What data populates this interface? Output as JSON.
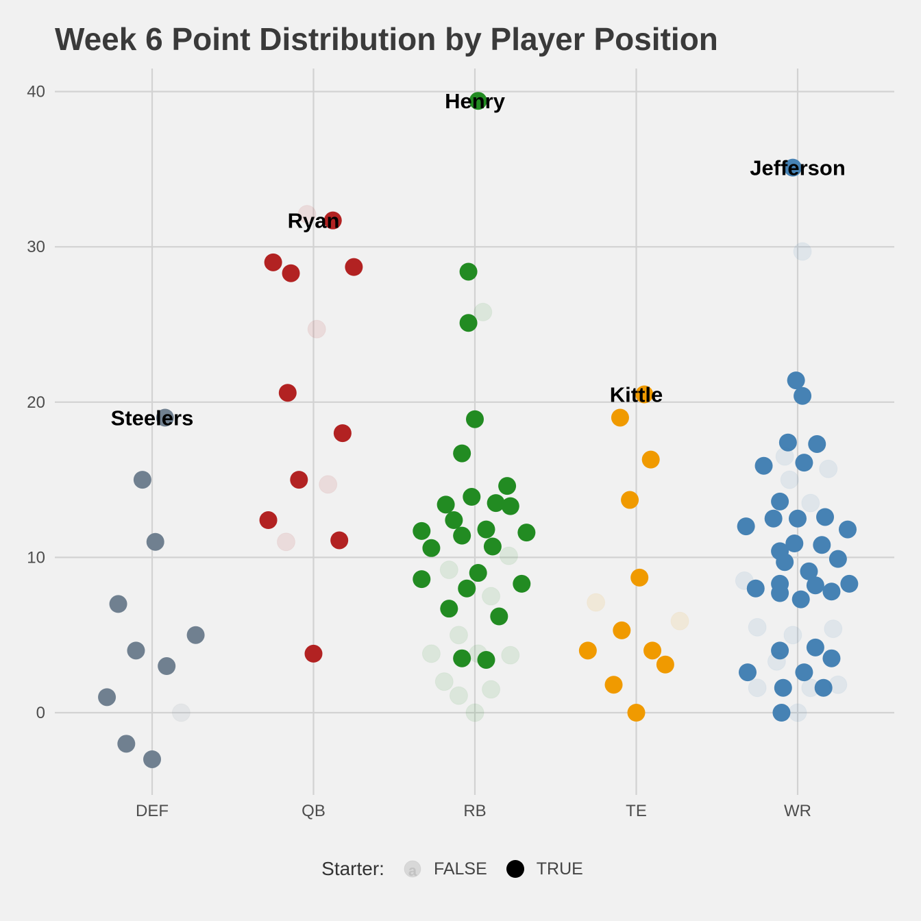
{
  "chart_data": {
    "type": "scatter",
    "title": "Week 6 Point Distribution by Player Position",
    "xlabel": "",
    "ylabel": "",
    "categories": [
      "DEF",
      "QB",
      "RB",
      "TE",
      "WR"
    ],
    "ylim": [
      -5,
      41
    ],
    "y_ticks": [
      0,
      10,
      20,
      30,
      40
    ],
    "grid": true,
    "legend": {
      "title": "Starter:",
      "position": "bottom",
      "entries": [
        {
          "label": "FALSE",
          "starter": false
        },
        {
          "label": "TRUE",
          "starter": true
        }
      ]
    },
    "colors": {
      "DEF": "#708090",
      "QB": "#b22222",
      "RB": "#228b22",
      "TE": "#f09a00",
      "WR": "#4682b4",
      "background": "#f1f1f1",
      "grid": "#d2d2d2"
    },
    "series": [
      {
        "category": "DEF",
        "points": [
          {
            "x": 0.08,
            "y": 19,
            "starter": true,
            "label": "Steelers"
          },
          {
            "x": -0.06,
            "y": 15,
            "starter": true
          },
          {
            "x": 0.02,
            "y": 11,
            "starter": true
          },
          {
            "x": -0.21,
            "y": 7,
            "starter": true
          },
          {
            "x": 0.27,
            "y": 5,
            "starter": true
          },
          {
            "x": -0.1,
            "y": 4,
            "starter": true
          },
          {
            "x": 0.09,
            "y": 3,
            "starter": true
          },
          {
            "x": -0.28,
            "y": 1,
            "starter": true
          },
          {
            "x": -0.16,
            "y": -2,
            "starter": true
          },
          {
            "x": 0.0,
            "y": -3,
            "starter": true
          },
          {
            "x": 0.18,
            "y": 0,
            "starter": false
          }
        ]
      },
      {
        "category": "QB",
        "points": [
          {
            "x": 0.12,
            "y": 31.7,
            "starter": true,
            "label": "Ryan"
          },
          {
            "x": -0.04,
            "y": 32.1,
            "starter": false
          },
          {
            "x": -0.25,
            "y": 29.0,
            "starter": true
          },
          {
            "x": -0.14,
            "y": 28.3,
            "starter": true
          },
          {
            "x": 0.25,
            "y": 28.7,
            "starter": true
          },
          {
            "x": 0.02,
            "y": 24.7,
            "starter": false
          },
          {
            "x": -0.16,
            "y": 20.6,
            "starter": true
          },
          {
            "x": 0.18,
            "y": 18.0,
            "starter": true
          },
          {
            "x": -0.09,
            "y": 15.0,
            "starter": true
          },
          {
            "x": 0.09,
            "y": 14.7,
            "starter": false
          },
          {
            "x": -0.28,
            "y": 12.4,
            "starter": true
          },
          {
            "x": -0.17,
            "y": 11.0,
            "starter": false
          },
          {
            "x": 0.16,
            "y": 11.1,
            "starter": true
          },
          {
            "x": 0.0,
            "y": 3.8,
            "starter": true
          }
        ]
      },
      {
        "category": "RB",
        "points": [
          {
            "x": 0.02,
            "y": 39.4,
            "starter": true,
            "label": "Henry"
          },
          {
            "x": -0.04,
            "y": 28.4,
            "starter": true
          },
          {
            "x": 0.05,
            "y": 25.8,
            "starter": false
          },
          {
            "x": -0.04,
            "y": 25.1,
            "starter": true
          },
          {
            "x": 0.0,
            "y": 18.9,
            "starter": true
          },
          {
            "x": -0.08,
            "y": 16.7,
            "starter": true
          },
          {
            "x": 0.2,
            "y": 14.6,
            "starter": true
          },
          {
            "x": -0.02,
            "y": 13.9,
            "starter": true
          },
          {
            "x": 0.13,
            "y": 13.5,
            "starter": true
          },
          {
            "x": -0.18,
            "y": 13.4,
            "starter": true
          },
          {
            "x": 0.22,
            "y": 13.3,
            "starter": true
          },
          {
            "x": -0.13,
            "y": 12.4,
            "starter": true
          },
          {
            "x": -0.33,
            "y": 11.7,
            "starter": true
          },
          {
            "x": 0.07,
            "y": 11.8,
            "starter": true
          },
          {
            "x": 0.32,
            "y": 11.6,
            "starter": true
          },
          {
            "x": -0.08,
            "y": 11.4,
            "starter": true
          },
          {
            "x": -0.27,
            "y": 10.6,
            "starter": true
          },
          {
            "x": 0.11,
            "y": 10.7,
            "starter": true
          },
          {
            "x": 0.21,
            "y": 10.1,
            "starter": false
          },
          {
            "x": -0.16,
            "y": 9.2,
            "starter": false
          },
          {
            "x": 0.02,
            "y": 9.0,
            "starter": true
          },
          {
            "x": -0.33,
            "y": 8.6,
            "starter": true
          },
          {
            "x": 0.29,
            "y": 8.3,
            "starter": true
          },
          {
            "x": -0.05,
            "y": 8.0,
            "starter": true
          },
          {
            "x": 0.1,
            "y": 7.5,
            "starter": false
          },
          {
            "x": -0.16,
            "y": 6.7,
            "starter": true
          },
          {
            "x": 0.15,
            "y": 6.2,
            "starter": true
          },
          {
            "x": -0.1,
            "y": 5.0,
            "starter": false
          },
          {
            "x": -0.27,
            "y": 3.8,
            "starter": false
          },
          {
            "x": 0.02,
            "y": 3.8,
            "starter": false
          },
          {
            "x": 0.22,
            "y": 3.7,
            "starter": false
          },
          {
            "x": -0.08,
            "y": 3.5,
            "starter": true
          },
          {
            "x": 0.07,
            "y": 3.4,
            "starter": true
          },
          {
            "x": -0.19,
            "y": 2.0,
            "starter": false
          },
          {
            "x": -0.1,
            "y": 1.1,
            "starter": false
          },
          {
            "x": 0.1,
            "y": 1.5,
            "starter": false
          },
          {
            "x": 0.0,
            "y": 0.0,
            "starter": false
          }
        ]
      },
      {
        "category": "TE",
        "points": [
          {
            "x": 0.05,
            "y": 20.5,
            "starter": true,
            "label": "Kittle"
          },
          {
            "x": -0.1,
            "y": 19.0,
            "starter": true
          },
          {
            "x": 0.09,
            "y": 16.3,
            "starter": true
          },
          {
            "x": -0.04,
            "y": 13.7,
            "starter": true
          },
          {
            "x": 0.02,
            "y": 8.7,
            "starter": true
          },
          {
            "x": -0.25,
            "y": 7.1,
            "starter": false
          },
          {
            "x": 0.27,
            "y": 5.9,
            "starter": false
          },
          {
            "x": -0.09,
            "y": 5.3,
            "starter": true
          },
          {
            "x": -0.3,
            "y": 4.0,
            "starter": true
          },
          {
            "x": 0.1,
            "y": 4.0,
            "starter": true
          },
          {
            "x": 0.18,
            "y": 3.1,
            "starter": true
          },
          {
            "x": -0.14,
            "y": 1.8,
            "starter": true
          },
          {
            "x": 0.0,
            "y": 0.0,
            "starter": true
          }
        ]
      },
      {
        "category": "WR",
        "points": [
          {
            "x": -0.03,
            "y": 35.1,
            "starter": true,
            "label": "Jefferson"
          },
          {
            "x": 0.03,
            "y": 29.7,
            "starter": false
          },
          {
            "x": -0.01,
            "y": 21.4,
            "starter": true
          },
          {
            "x": 0.03,
            "y": 20.4,
            "starter": true
          },
          {
            "x": -0.06,
            "y": 17.4,
            "starter": true
          },
          {
            "x": 0.12,
            "y": 17.3,
            "starter": true
          },
          {
            "x": -0.08,
            "y": 16.5,
            "starter": false
          },
          {
            "x": 0.04,
            "y": 16.1,
            "starter": true
          },
          {
            "x": -0.21,
            "y": 15.9,
            "starter": true
          },
          {
            "x": 0.19,
            "y": 15.7,
            "starter": false
          },
          {
            "x": -0.05,
            "y": 15.0,
            "starter": false
          },
          {
            "x": -0.11,
            "y": 13.6,
            "starter": true
          },
          {
            "x": 0.08,
            "y": 13.5,
            "starter": false
          },
          {
            "x": -0.15,
            "y": 12.5,
            "starter": true
          },
          {
            "x": 0.0,
            "y": 12.5,
            "starter": true
          },
          {
            "x": 0.17,
            "y": 12.6,
            "starter": true
          },
          {
            "x": -0.32,
            "y": 12.0,
            "starter": true
          },
          {
            "x": 0.31,
            "y": 11.8,
            "starter": true
          },
          {
            "x": -0.11,
            "y": 10.4,
            "starter": true
          },
          {
            "x": -0.02,
            "y": 10.9,
            "starter": true
          },
          {
            "x": 0.15,
            "y": 10.8,
            "starter": true
          },
          {
            "x": 0.25,
            "y": 9.9,
            "starter": true
          },
          {
            "x": -0.08,
            "y": 9.7,
            "starter": true
          },
          {
            "x": 0.07,
            "y": 9.1,
            "starter": true
          },
          {
            "x": -0.33,
            "y": 8.5,
            "starter": false
          },
          {
            "x": -0.11,
            "y": 8.3,
            "starter": true
          },
          {
            "x": 0.11,
            "y": 8.2,
            "starter": true
          },
          {
            "x": 0.32,
            "y": 8.3,
            "starter": true
          },
          {
            "x": -0.26,
            "y": 8.0,
            "starter": true
          },
          {
            "x": -0.11,
            "y": 7.7,
            "starter": true
          },
          {
            "x": 0.21,
            "y": 7.8,
            "starter": true
          },
          {
            "x": 0.02,
            "y": 7.3,
            "starter": true
          },
          {
            "x": -0.25,
            "y": 5.5,
            "starter": false
          },
          {
            "x": -0.03,
            "y": 5.0,
            "starter": false
          },
          {
            "x": 0.22,
            "y": 5.4,
            "starter": false
          },
          {
            "x": -0.11,
            "y": 4.0,
            "starter": true
          },
          {
            "x": 0.11,
            "y": 4.2,
            "starter": true
          },
          {
            "x": 0.21,
            "y": 3.5,
            "starter": true
          },
          {
            "x": -0.13,
            "y": 3.3,
            "starter": false
          },
          {
            "x": -0.31,
            "y": 2.6,
            "starter": true
          },
          {
            "x": 0.04,
            "y": 2.6,
            "starter": true
          },
          {
            "x": -0.25,
            "y": 1.6,
            "starter": false
          },
          {
            "x": -0.09,
            "y": 1.6,
            "starter": true
          },
          {
            "x": 0.08,
            "y": 1.6,
            "starter": false
          },
          {
            "x": 0.16,
            "y": 1.6,
            "starter": true
          },
          {
            "x": 0.25,
            "y": 1.8,
            "starter": false
          },
          {
            "x": -0.1,
            "y": 0.0,
            "starter": true
          },
          {
            "x": 0.0,
            "y": 0.0,
            "starter": false
          }
        ]
      }
    ]
  }
}
